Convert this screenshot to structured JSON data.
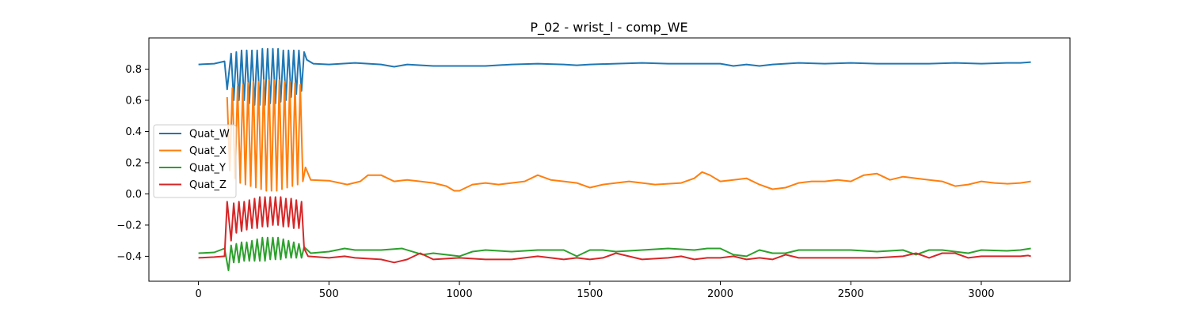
{
  "chart_data": {
    "type": "line",
    "title": "P_02 - wrist_l - comp_WE",
    "xlabel": "",
    "ylabel": "",
    "xlim": [
      -190,
      3340
    ],
    "ylim": [
      -0.56,
      1.0
    ],
    "x_ticks": [
      0,
      500,
      1000,
      1500,
      2000,
      2500,
      3000
    ],
    "y_ticks": [
      -0.4,
      -0.2,
      0.0,
      0.2,
      0.4,
      0.6,
      0.8
    ],
    "x_tick_labels": [
      "0",
      "500",
      "1000",
      "1500",
      "2000",
      "2500",
      "3000"
    ],
    "y_tick_labels": [
      "−0.4",
      "−0.2",
      "0.0",
      "0.2",
      "0.4",
      "0.6",
      "0.8"
    ],
    "grid": false,
    "legend_position": "center-left",
    "series": [
      {
        "name": "Quat_W",
        "color": "#1f77b4",
        "x": [
          0,
          60,
          100,
          110,
          125,
          135,
          145,
          155,
          165,
          175,
          185,
          195,
          205,
          215,
          225,
          235,
          245,
          255,
          265,
          275,
          285,
          295,
          305,
          315,
          325,
          335,
          345,
          355,
          365,
          375,
          385,
          395,
          405,
          415,
          440,
          500,
          600,
          700,
          750,
          800,
          900,
          1000,
          1100,
          1200,
          1300,
          1400,
          1450,
          1500,
          1600,
          1700,
          1800,
          1900,
          2000,
          2050,
          2100,
          2150,
          2200,
          2300,
          2400,
          2500,
          2600,
          2700,
          2800,
          2900,
          3000,
          3100,
          3150,
          3190
        ],
        "y": [
          0.83,
          0.835,
          0.85,
          0.67,
          0.9,
          0.6,
          0.91,
          0.6,
          0.92,
          0.6,
          0.92,
          0.58,
          0.92,
          0.57,
          0.92,
          0.57,
          0.93,
          0.57,
          0.93,
          0.58,
          0.93,
          0.58,
          0.93,
          0.59,
          0.92,
          0.6,
          0.92,
          0.62,
          0.92,
          0.64,
          0.92,
          0.66,
          0.91,
          0.86,
          0.835,
          0.83,
          0.84,
          0.83,
          0.815,
          0.83,
          0.82,
          0.82,
          0.82,
          0.83,
          0.835,
          0.83,
          0.825,
          0.83,
          0.835,
          0.84,
          0.835,
          0.835,
          0.835,
          0.82,
          0.83,
          0.82,
          0.83,
          0.84,
          0.835,
          0.84,
          0.835,
          0.835,
          0.835,
          0.84,
          0.835,
          0.84,
          0.84,
          0.845
        ]
      },
      {
        "name": "Quat_X",
        "color": "#ff7f0e",
        "x": [
          110,
          120,
          130,
          140,
          150,
          160,
          170,
          180,
          190,
          200,
          210,
          220,
          230,
          240,
          250,
          260,
          270,
          280,
          290,
          300,
          310,
          320,
          330,
          340,
          350,
          360,
          370,
          380,
          390,
          400,
          410,
          430,
          500,
          570,
          620,
          650,
          700,
          750,
          800,
          850,
          900,
          950,
          980,
          1000,
          1050,
          1100,
          1150,
          1200,
          1250,
          1300,
          1350,
          1400,
          1450,
          1500,
          1550,
          1600,
          1650,
          1700,
          1750,
          1800,
          1850,
          1900,
          1930,
          1960,
          2000,
          2050,
          2100,
          2150,
          2200,
          2250,
          2300,
          2350,
          2400,
          2450,
          2500,
          2550,
          2600,
          2650,
          2700,
          2750,
          2800,
          2850,
          2900,
          2950,
          3000,
          3050,
          3100,
          3150,
          3190
        ],
        "y": [
          0.62,
          0.15,
          0.68,
          0.1,
          0.69,
          0.07,
          0.7,
          0.06,
          0.71,
          0.05,
          0.72,
          0.04,
          0.72,
          0.03,
          0.73,
          0.02,
          0.73,
          0.02,
          0.73,
          0.02,
          0.73,
          0.03,
          0.72,
          0.04,
          0.72,
          0.05,
          0.71,
          0.06,
          0.7,
          0.08,
          0.17,
          0.09,
          0.085,
          0.06,
          0.08,
          0.12,
          0.12,
          0.08,
          0.09,
          0.08,
          0.07,
          0.05,
          0.02,
          0.02,
          0.06,
          0.07,
          0.06,
          0.07,
          0.08,
          0.12,
          0.09,
          0.08,
          0.07,
          0.04,
          0.06,
          0.07,
          0.08,
          0.07,
          0.06,
          0.065,
          0.07,
          0.1,
          0.14,
          0.12,
          0.08,
          0.09,
          0.1,
          0.06,
          0.03,
          0.04,
          0.07,
          0.08,
          0.08,
          0.09,
          0.08,
          0.12,
          0.13,
          0.09,
          0.11,
          0.1,
          0.09,
          0.08,
          0.05,
          0.06,
          0.08,
          0.07,
          0.065,
          0.07,
          0.08
        ]
      },
      {
        "name": "Quat_Y",
        "color": "#2ca02c",
        "x": [
          0,
          60,
          100,
          115,
          125,
          135,
          145,
          155,
          165,
          175,
          185,
          195,
          205,
          215,
          225,
          235,
          245,
          255,
          265,
          275,
          285,
          295,
          305,
          315,
          325,
          335,
          345,
          355,
          365,
          375,
          385,
          395,
          405,
          430,
          500,
          560,
          600,
          700,
          780,
          860,
          900,
          1000,
          1050,
          1100,
          1200,
          1300,
          1400,
          1450,
          1500,
          1550,
          1600,
          1700,
          1800,
          1900,
          1950,
          2000,
          2050,
          2100,
          2150,
          2200,
          2250,
          2300,
          2400,
          2500,
          2600,
          2700,
          2750,
          2800,
          2850,
          2900,
          2950,
          3000,
          3100,
          3150,
          3190
        ],
        "y": [
          -0.38,
          -0.375,
          -0.35,
          -0.49,
          -0.33,
          -0.44,
          -0.32,
          -0.44,
          -0.31,
          -0.43,
          -0.31,
          -0.43,
          -0.3,
          -0.43,
          -0.29,
          -0.43,
          -0.28,
          -0.43,
          -0.28,
          -0.42,
          -0.28,
          -0.42,
          -0.28,
          -0.42,
          -0.29,
          -0.41,
          -0.3,
          -0.41,
          -0.31,
          -0.41,
          -0.32,
          -0.41,
          -0.34,
          -0.38,
          -0.37,
          -0.35,
          -0.36,
          -0.36,
          -0.35,
          -0.39,
          -0.38,
          -0.4,
          -0.37,
          -0.36,
          -0.37,
          -0.36,
          -0.36,
          -0.4,
          -0.36,
          -0.36,
          -0.37,
          -0.36,
          -0.35,
          -0.36,
          -0.35,
          -0.35,
          -0.39,
          -0.4,
          -0.36,
          -0.38,
          -0.38,
          -0.36,
          -0.36,
          -0.36,
          -0.37,
          -0.36,
          -0.39,
          -0.36,
          -0.36,
          -0.37,
          -0.38,
          -0.36,
          -0.365,
          -0.36,
          -0.35
        ]
      },
      {
        "name": "Quat_Z",
        "color": "#d62728",
        "x": [
          0,
          60,
          100,
          110,
          125,
          135,
          145,
          155,
          165,
          175,
          185,
          195,
          205,
          215,
          225,
          235,
          245,
          255,
          265,
          275,
          285,
          295,
          305,
          315,
          325,
          335,
          345,
          355,
          365,
          375,
          385,
          395,
          405,
          420,
          500,
          560,
          600,
          700,
          750,
          800,
          850,
          900,
          1000,
          1100,
          1200,
          1250,
          1300,
          1350,
          1400,
          1450,
          1500,
          1550,
          1600,
          1700,
          1800,
          1850,
          1900,
          1950,
          2000,
          2050,
          2100,
          2150,
          2200,
          2250,
          2300,
          2400,
          2500,
          2600,
          2700,
          2750,
          2800,
          2850,
          2900,
          2950,
          3000,
          3100,
          3150,
          3180,
          3190
        ],
        "y": [
          -0.41,
          -0.405,
          -0.4,
          -0.05,
          -0.3,
          -0.06,
          -0.25,
          -0.05,
          -0.24,
          -0.05,
          -0.23,
          -0.04,
          -0.22,
          -0.03,
          -0.22,
          -0.02,
          -0.21,
          -0.02,
          -0.21,
          -0.02,
          -0.2,
          -0.02,
          -0.2,
          -0.02,
          -0.21,
          -0.03,
          -0.21,
          -0.03,
          -0.22,
          -0.04,
          -0.22,
          -0.05,
          -0.35,
          -0.4,
          -0.41,
          -0.4,
          -0.41,
          -0.42,
          -0.44,
          -0.42,
          -0.38,
          -0.42,
          -0.41,
          -0.42,
          -0.42,
          -0.41,
          -0.4,
          -0.41,
          -0.42,
          -0.41,
          -0.42,
          -0.41,
          -0.38,
          -0.42,
          -0.41,
          -0.4,
          -0.42,
          -0.41,
          -0.41,
          -0.4,
          -0.42,
          -0.41,
          -0.42,
          -0.39,
          -0.41,
          -0.41,
          -0.41,
          -0.41,
          -0.4,
          -0.38,
          -0.41,
          -0.38,
          -0.38,
          -0.41,
          -0.4,
          -0.4,
          -0.4,
          -0.395,
          -0.4
        ]
      }
    ]
  }
}
